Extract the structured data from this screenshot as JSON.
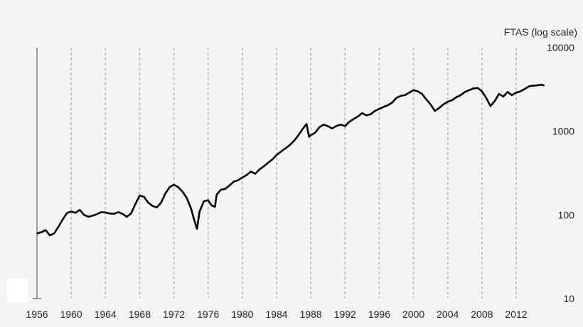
{
  "chart_data": {
    "type": "line",
    "title": "",
    "ylabel": "FTAS (log scale)",
    "xlabel": "",
    "y_scale": "log",
    "ylim": [
      10,
      10000
    ],
    "xlim": [
      1956,
      2016
    ],
    "x_ticks": [
      "1956",
      "1960",
      "1964",
      "1968",
      "1972",
      "1976",
      "1980",
      "1984",
      "1988",
      "1992",
      "1996",
      "2000",
      "2004",
      "2008",
      "2012"
    ],
    "y_ticks": [
      "10",
      "100",
      "1000",
      "10000"
    ],
    "grid": "vertical dashed lines at each x tick",
    "line_color": "#000000",
    "grid_color": "#bbbbbb",
    "series": [
      {
        "x": [
          1956.0,
          1956.5,
          1957.0,
          1957.5,
          1958.0,
          1958.5,
          1959.0,
          1959.5,
          1960.0,
          1960.5,
          1961.0,
          1961.5,
          1962.0,
          1962.5,
          1963.0,
          1963.5,
          1964.0,
          1964.5,
          1965.0,
          1965.5,
          1966.0,
          1966.5,
          1967.0,
          1967.5,
          1968.0,
          1968.5,
          1969.0,
          1969.5,
          1970.0,
          1970.5,
          1971.0,
          1971.5,
          1972.0,
          1972.5,
          1973.0,
          1973.5,
          1974.0,
          1974.4,
          1974.7,
          1975.0,
          1975.5,
          1976.0,
          1976.4,
          1976.8,
          1977.0,
          1977.5,
          1978.0,
          1978.5,
          1979.0,
          1979.5,
          1980.0,
          1980.5,
          1981.0,
          1981.5,
          1982.0,
          1982.5,
          1983.0,
          1983.5,
          1984.0,
          1984.5,
          1985.0,
          1985.5,
          1986.0,
          1986.5,
          1987.0,
          1987.5,
          1987.8,
          1988.0,
          1988.5,
          1989.0,
          1989.5,
          1990.0,
          1990.5,
          1991.0,
          1991.5,
          1992.0,
          1992.5,
          1993.0,
          1993.5,
          1994.0,
          1994.5,
          1995.0,
          1995.5,
          1996.0,
          1996.5,
          1997.0,
          1997.5,
          1998.0,
          1998.5,
          1999.0,
          1999.5,
          2000.0,
          2000.5,
          2001.0,
          2001.5,
          2002.0,
          2002.5,
          2003.0,
          2003.5,
          2004.0,
          2004.5,
          2005.0,
          2005.5,
          2006.0,
          2006.5,
          2007.0,
          2007.5,
          2008.0,
          2008.5,
          2009.0,
          2009.5,
          2010.0,
          2010.5,
          2011.0,
          2011.5,
          2012.0,
          2012.5,
          2013.0,
          2013.5,
          2014.0,
          2014.5,
          2015.0,
          2015.3
        ],
        "y": [
          60,
          62,
          66,
          57,
          60,
          72,
          88,
          105,
          110,
          106,
          115,
          100,
          95,
          98,
          102,
          108,
          107,
          104,
          103,
          108,
          103,
          95,
          104,
          135,
          170,
          165,
          140,
          128,
          123,
          140,
          180,
          215,
          230,
          215,
          190,
          160,
          120,
          85,
          68,
          110,
          145,
          150,
          130,
          125,
          175,
          200,
          205,
          225,
          250,
          260,
          280,
          300,
          330,
          310,
          350,
          380,
          420,
          460,
          520,
          570,
          620,
          680,
          760,
          880,
          1050,
          1220,
          860,
          900,
          960,
          1120,
          1200,
          1150,
          1080,
          1160,
          1200,
          1150,
          1300,
          1400,
          1500,
          1650,
          1550,
          1600,
          1750,
          1850,
          1950,
          2050,
          2200,
          2500,
          2650,
          2700,
          2900,
          3100,
          3000,
          2800,
          2400,
          2100,
          1750,
          1900,
          2100,
          2250,
          2350,
          2550,
          2700,
          2950,
          3100,
          3250,
          3300,
          3000,
          2500,
          2000,
          2300,
          2800,
          2600,
          2950,
          2700,
          2900,
          3000,
          3200,
          3450,
          3500,
          3550,
          3600,
          3500
        ]
      }
    ]
  }
}
